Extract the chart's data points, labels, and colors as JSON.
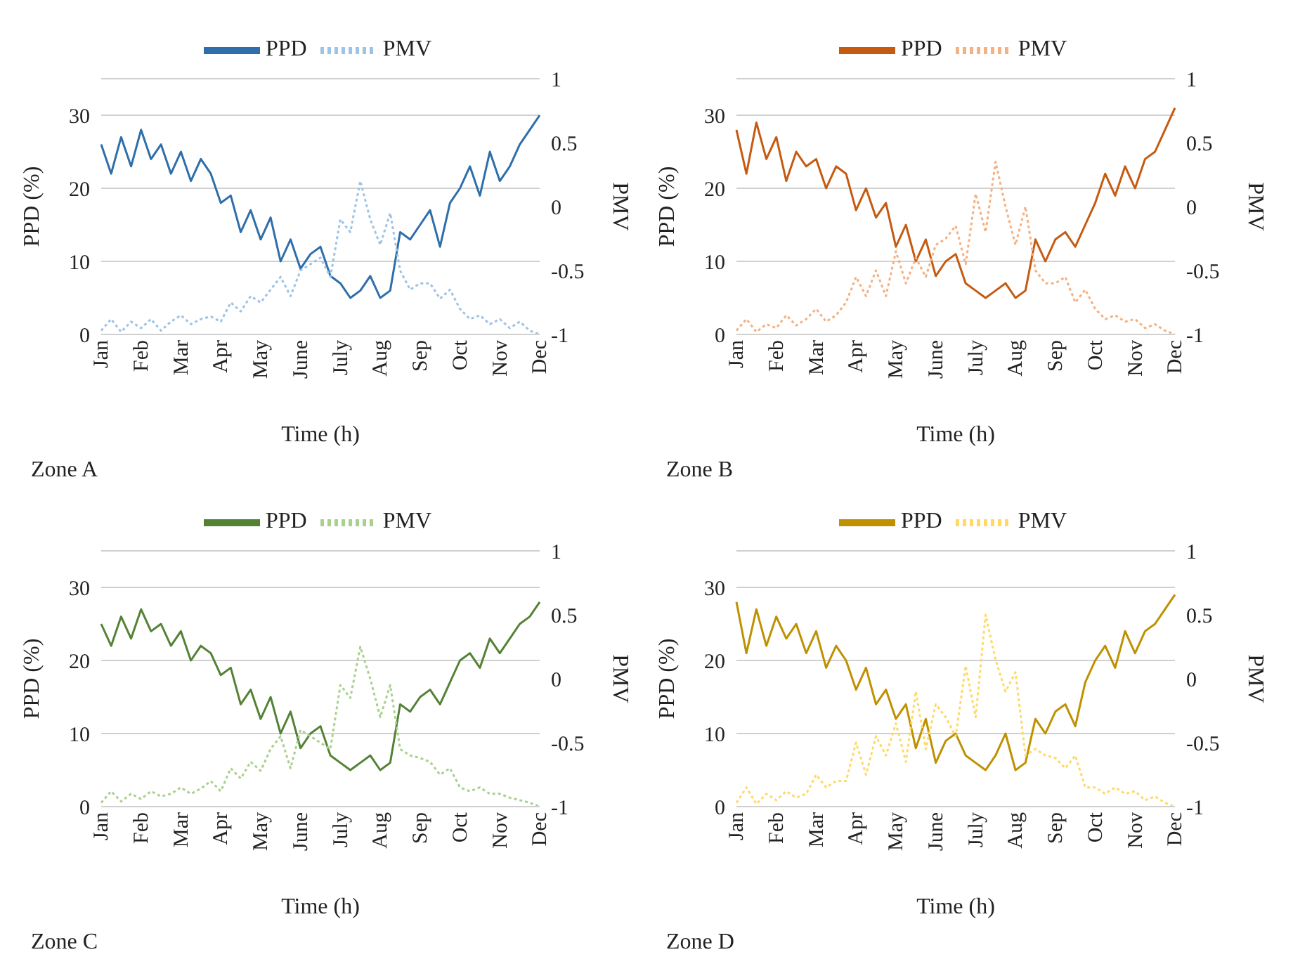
{
  "chart_data": [
    {
      "type": "line",
      "xlabel": "Time (h)",
      "ylabel": "PPD (%)",
      "y2label": "PMV",
      "annotations": [
        "Zone A"
      ],
      "legend": "top",
      "grid": "y",
      "categories": [
        "Jan",
        null,
        null,
        null,
        "Feb",
        null,
        null,
        null,
        "Mar",
        null,
        null,
        null,
        "Apr",
        null,
        null,
        null,
        "May",
        null,
        null,
        null,
        "June",
        null,
        null,
        null,
        "July",
        null,
        null,
        null,
        "Aug",
        null,
        null,
        null,
        "Sep",
        null,
        null,
        null,
        "Oct",
        null,
        null,
        null,
        "Nov",
        null,
        null,
        null,
        "Dec"
      ],
      "ylim": [
        0,
        35
      ],
      "yticks": [
        0,
        10,
        20,
        30
      ],
      "y2lim": [
        -1,
        1
      ],
      "y2ticks": [
        -1,
        -0.5,
        0,
        0.5,
        1
      ],
      "series": [
        {
          "name": "PPD",
          "color": "#2e6eaa",
          "line_style": "solid",
          "values": [
            26,
            22,
            27,
            23,
            28,
            24,
            26,
            22,
            25,
            21,
            24,
            22,
            18,
            19,
            14,
            17,
            13,
            16,
            10,
            13,
            9,
            11,
            12,
            8,
            7,
            5,
            6,
            8,
            5,
            6,
            14,
            13,
            15,
            17,
            12,
            18,
            20,
            23,
            19,
            25,
            21,
            23,
            26,
            28,
            30
          ]
        },
        {
          "name": "PMV",
          "color": "#9dc3e6",
          "line_style": "dotted",
          "axis": "y2",
          "values": [
            -0.97,
            -0.88,
            -0.98,
            -0.9,
            -0.95,
            -0.88,
            -0.97,
            -0.9,
            -0.85,
            -0.92,
            -0.88,
            -0.86,
            -0.9,
            -0.75,
            -0.82,
            -0.7,
            -0.75,
            -0.65,
            -0.55,
            -0.7,
            -0.5,
            -0.45,
            -0.4,
            -0.55,
            -0.1,
            -0.2,
            0.2,
            -0.1,
            -0.3,
            -0.05,
            -0.5,
            -0.65,
            -0.6,
            -0.6,
            -0.72,
            -0.65,
            -0.8,
            -0.88,
            -0.85,
            -0.92,
            -0.88,
            -0.95,
            -0.9,
            -0.97,
            -1
          ]
        }
      ]
    },
    {
      "type": "line",
      "xlabel": "Time (h)",
      "ylabel": "PPD (%)",
      "y2label": "PMV",
      "annotations": [
        "Zone B"
      ],
      "legend": "top",
      "grid": "y",
      "categories": [
        "Jan",
        null,
        null,
        null,
        "Feb",
        null,
        null,
        null,
        "Mar",
        null,
        null,
        null,
        "Apr",
        null,
        null,
        null,
        "May",
        null,
        null,
        null,
        "June",
        null,
        null,
        null,
        "July",
        null,
        null,
        null,
        "Aug",
        null,
        null,
        null,
        "Sep",
        null,
        null,
        null,
        "Oct",
        null,
        null,
        null,
        "Nov",
        null,
        null,
        null,
        "Dec"
      ],
      "ylim": [
        0,
        35
      ],
      "yticks": [
        0,
        10,
        20,
        30
      ],
      "y2lim": [
        -1,
        1
      ],
      "y2ticks": [
        -1,
        -0.5,
        0,
        0.5,
        1
      ],
      "series": [
        {
          "name": "PPD",
          "color": "#c55a11",
          "line_style": "solid",
          "values": [
            28,
            22,
            29,
            24,
            27,
            21,
            25,
            23,
            24,
            20,
            23,
            22,
            17,
            20,
            16,
            18,
            12,
            15,
            10,
            13,
            8,
            10,
            11,
            7,
            6,
            5,
            6,
            7,
            5,
            6,
            13,
            10,
            13,
            14,
            12,
            15,
            18,
            22,
            19,
            23,
            20,
            24,
            25,
            28,
            31
          ]
        },
        {
          "name": "PMV",
          "color": "#f4b183",
          "line_style": "dotted",
          "axis": "y2",
          "values": [
            -0.97,
            -0.88,
            -0.98,
            -0.92,
            -0.95,
            -0.85,
            -0.93,
            -0.88,
            -0.8,
            -0.9,
            -0.85,
            -0.75,
            -0.55,
            -0.7,
            -0.5,
            -0.7,
            -0.35,
            -0.6,
            -0.4,
            -0.55,
            -0.3,
            -0.25,
            -0.15,
            -0.45,
            0.1,
            -0.2,
            0.35,
            0,
            -0.3,
            0,
            -0.5,
            -0.6,
            -0.6,
            -0.55,
            -0.75,
            -0.65,
            -0.8,
            -0.88,
            -0.85,
            -0.9,
            -0.88,
            -0.95,
            -0.92,
            -0.97,
            -1
          ]
        }
      ]
    },
    {
      "type": "line",
      "xlabel": "Time (h)",
      "ylabel": "PPD (%)",
      "y2label": "PMV",
      "annotations": [
        "Zone C"
      ],
      "legend": "top",
      "grid": "y",
      "categories": [
        "Jan",
        null,
        null,
        null,
        "Feb",
        null,
        null,
        null,
        "Mar",
        null,
        null,
        null,
        "Apr",
        null,
        null,
        null,
        "May",
        null,
        null,
        null,
        "June",
        null,
        null,
        null,
        "July",
        null,
        null,
        null,
        "Aug",
        null,
        null,
        null,
        "Sep",
        null,
        null,
        null,
        "Oct",
        null,
        null,
        null,
        "Nov",
        null,
        null,
        null,
        "Dec"
      ],
      "ylim": [
        0,
        35
      ],
      "yticks": [
        0,
        10,
        20,
        30
      ],
      "y2lim": [
        -1,
        1
      ],
      "y2ticks": [
        -1,
        -0.5,
        0,
        0.5,
        1
      ],
      "series": [
        {
          "name": "PPD",
          "color": "#548235",
          "line_style": "solid",
          "values": [
            25,
            22,
            26,
            23,
            27,
            24,
            25,
            22,
            24,
            20,
            22,
            21,
            18,
            19,
            14,
            16,
            12,
            15,
            10,
            13,
            8,
            10,
            11,
            7,
            6,
            5,
            6,
            7,
            5,
            6,
            14,
            13,
            15,
            16,
            14,
            17,
            20,
            21,
            19,
            23,
            21,
            23,
            25,
            26,
            28
          ]
        },
        {
          "name": "PMV",
          "color": "#a9d18e",
          "line_style": "dotted",
          "axis": "y2",
          "values": [
            -0.97,
            -0.88,
            -0.96,
            -0.9,
            -0.94,
            -0.88,
            -0.92,
            -0.9,
            -0.85,
            -0.9,
            -0.86,
            -0.8,
            -0.88,
            -0.7,
            -0.78,
            -0.65,
            -0.72,
            -0.55,
            -0.45,
            -0.7,
            -0.4,
            -0.45,
            -0.5,
            -0.55,
            -0.05,
            -0.15,
            0.25,
            0,
            -0.3,
            -0.05,
            -0.55,
            -0.6,
            -0.62,
            -0.65,
            -0.75,
            -0.7,
            -0.85,
            -0.88,
            -0.85,
            -0.9,
            -0.9,
            -0.93,
            -0.95,
            -0.97,
            -1
          ]
        }
      ]
    },
    {
      "type": "line",
      "xlabel": "Time (h)",
      "ylabel": "PPD (%)",
      "y2label": "PMV",
      "annotations": [
        "Zone D"
      ],
      "legend": "top",
      "grid": "y",
      "categories": [
        "Jan",
        null,
        null,
        null,
        "Feb",
        null,
        null,
        null,
        "Mar",
        null,
        null,
        null,
        "Apr",
        null,
        null,
        null,
        "May",
        null,
        null,
        null,
        "June",
        null,
        null,
        null,
        "July",
        null,
        null,
        null,
        "Aug",
        null,
        null,
        null,
        "Sep",
        null,
        null,
        null,
        "Oct",
        null,
        null,
        null,
        "Nov",
        null,
        null,
        null,
        "Dec"
      ],
      "ylim": [
        0,
        35
      ],
      "yticks": [
        0,
        10,
        20,
        30
      ],
      "y2lim": [
        -1,
        1
      ],
      "y2ticks": [
        -1,
        -0.5,
        0,
        0.5,
        1
      ],
      "series": [
        {
          "name": "PPD",
          "color": "#bf9000",
          "line_style": "solid",
          "values": [
            28,
            21,
            27,
            22,
            26,
            23,
            25,
            21,
            24,
            19,
            22,
            20,
            16,
            19,
            14,
            16,
            12,
            14,
            8,
            12,
            6,
            9,
            10,
            7,
            6,
            5,
            7,
            10,
            5,
            6,
            12,
            10,
            13,
            14,
            11,
            17,
            20,
            22,
            19,
            24,
            21,
            24,
            25,
            27,
            29
          ]
        },
        {
          "name": "PMV",
          "color": "#ffd966",
          "line_style": "dotted",
          "axis": "y2",
          "values": [
            -0.97,
            -0.85,
            -0.98,
            -0.9,
            -0.95,
            -0.88,
            -0.93,
            -0.9,
            -0.75,
            -0.85,
            -0.8,
            -0.8,
            -0.5,
            -0.75,
            -0.45,
            -0.6,
            -0.35,
            -0.65,
            -0.1,
            -0.55,
            -0.2,
            -0.3,
            -0.45,
            0.1,
            -0.3,
            0.5,
            0.15,
            -0.1,
            0.05,
            -0.6,
            -0.55,
            -0.6,
            -0.62,
            -0.7,
            -0.6,
            -0.85,
            -0.85,
            -0.9,
            -0.85,
            -0.9,
            -0.88,
            -0.95,
            -0.92,
            -0.97,
            -1
          ]
        }
      ]
    }
  ]
}
